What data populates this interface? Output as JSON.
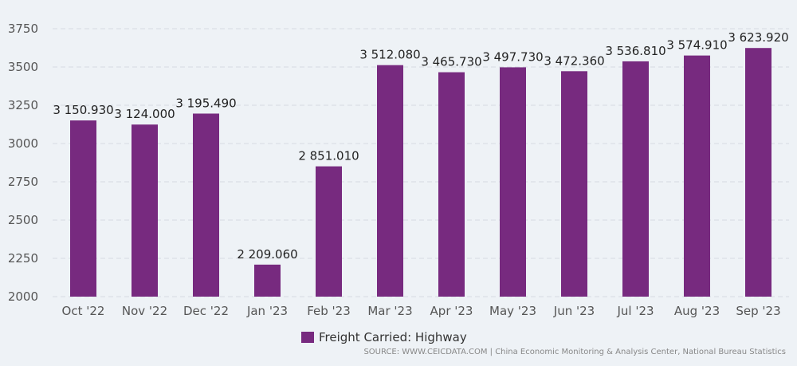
{
  "chart_data": {
    "type": "bar",
    "categories": [
      "Oct '22",
      "Nov '22",
      "Dec '22",
      "Jan '23",
      "Feb '23",
      "Mar '23",
      "Apr '23",
      "May '23",
      "Jun '23",
      "Jul '23",
      "Aug '23",
      "Sep '23"
    ],
    "series": [
      {
        "name": "Freight Carried: Highway",
        "values": [
          3150.93,
          3124.0,
          3195.49,
          2209.06,
          2851.01,
          3512.08,
          3465.73,
          3497.73,
          3472.36,
          3536.81,
          3574.91,
          3623.92
        ]
      }
    ],
    "data_labels": [
      "3 150.930",
      "3 124.000",
      "3 195.490",
      "2 209.060",
      "2 851.010",
      "3 512.080",
      "3 465.730",
      "3 497.730",
      "3 472.360",
      "3 536.810",
      "3 574.910",
      "3 623.920"
    ],
    "yticks": [
      2000,
      2250,
      2500,
      2750,
      3000,
      3250,
      3500,
      3750
    ],
    "ylim": [
      2000,
      3750
    ],
    "grid": true,
    "legend_position": "bottom-center",
    "colors": {
      "bar": "#772a7f",
      "grid": "#d5dbe2",
      "axis_text": "#555555",
      "label_text": "#222222"
    }
  },
  "legend": {
    "label": "Freight Carried: Highway"
  },
  "source": "SOURCE: WWW.CEICDATA.COM | China Economic Monitoring & Analysis Center, National Bureau Statistics"
}
